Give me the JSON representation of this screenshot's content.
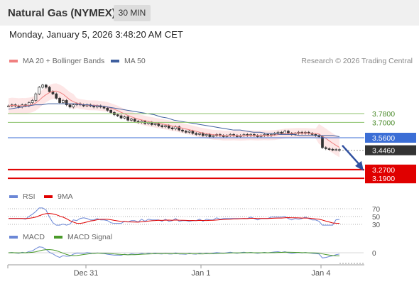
{
  "header": {
    "instrument_title": "Natural Gas (NYMEX)",
    "timeframe_button": "30 MIN",
    "datetime": "Monday, January 5, 2026 3:48:20 AM CET"
  },
  "legend": {
    "ma20": "MA 20 + Bollinger Bands",
    "ma50": "MA 50",
    "credit": "Research © 2026 Trading Central",
    "rsi": "RSI",
    "ma9": "9MA",
    "macd": "MACD",
    "macd_signal": "MACD Signal"
  },
  "colors": {
    "ma20": "#f08080",
    "bollinger_fill": "#fbd6d6",
    "ma50": "#3f5f9f",
    "price_line": "#3b6ed6",
    "support": "#e00000",
    "resistance": "#8cc26b",
    "current_price": "#333333",
    "arrow": "#3050a0",
    "rsi": "#6b87d6",
    "rsi_ma9": "#e00000",
    "macd": "#6b87d6",
    "macd_signal": "#4a9a2a"
  },
  "chart_data": {
    "type": "line",
    "x_ticks": [
      "Dec 31",
      "Jan 1",
      "Jan 4"
    ],
    "price_levels": [
      {
        "name": "resistance_2",
        "value": 3.78,
        "label": "3.7800"
      },
      {
        "name": "resistance_1",
        "value": 3.7,
        "label": "3.7000"
      },
      {
        "name": "pivot",
        "value": 3.56,
        "label": "3.5600"
      },
      {
        "name": "current",
        "value": 3.446,
        "label": "3.4460"
      },
      {
        "name": "support_1",
        "value": 3.27,
        "label": "3.2700"
      },
      {
        "name": "support_2",
        "value": 3.19,
        "label": "3.1900"
      }
    ],
    "candles_close": [
      3.85,
      3.86,
      3.85,
      3.84,
      3.86,
      3.85,
      3.88,
      3.9,
      3.96,
      4.02,
      4.04,
      4.02,
      3.98,
      3.96,
      3.92,
      3.88,
      3.9,
      3.86,
      3.84,
      3.86,
      3.87,
      3.86,
      3.85,
      3.86,
      3.85,
      3.84,
      3.85,
      3.84,
      3.83,
      3.81,
      3.79,
      3.77,
      3.76,
      3.74,
      3.75,
      3.72,
      3.73,
      3.71,
      3.7,
      3.71,
      3.69,
      3.7,
      3.68,
      3.69,
      3.67,
      3.66,
      3.67,
      3.65,
      3.64,
      3.66,
      3.63,
      3.62,
      3.61,
      3.62,
      3.6,
      3.59,
      3.6,
      3.58,
      3.59,
      3.57,
      3.58,
      3.59,
      3.58,
      3.57,
      3.58,
      3.59,
      3.58,
      3.57,
      3.58,
      3.59,
      3.58,
      3.59,
      3.58,
      3.57,
      3.58,
      3.59,
      3.58,
      3.59,
      3.6,
      3.61,
      3.6,
      3.62,
      3.6,
      3.59,
      3.6,
      3.61,
      3.6,
      3.61,
      3.6,
      3.59,
      3.58,
      3.57,
      3.47,
      3.46,
      3.455,
      3.45,
      3.452,
      3.446
    ],
    "ma50": [
      3.82,
      3.83,
      3.84,
      3.85,
      3.86,
      3.86,
      3.87,
      3.87,
      3.87,
      3.87,
      3.87,
      3.86,
      3.86,
      3.85,
      3.85,
      3.84,
      3.83,
      3.82,
      3.81,
      3.8,
      3.79,
      3.78,
      3.77,
      3.75,
      3.74,
      3.72,
      3.71,
      3.7,
      3.69,
      3.68,
      3.67,
      3.66,
      3.65,
      3.64,
      3.63,
      3.63,
      3.62,
      3.61,
      3.61,
      3.6,
      3.6,
      3.59,
      3.59,
      3.59,
      3.58,
      3.58,
      3.58,
      3.58,
      3.58,
      3.58,
      3.57
    ],
    "projection": {
      "from": 3.49,
      "to": 3.29
    },
    "rsi": {
      "levels": [
        70,
        50,
        30
      ]
    },
    "macd": {
      "levels": [
        0
      ]
    }
  }
}
